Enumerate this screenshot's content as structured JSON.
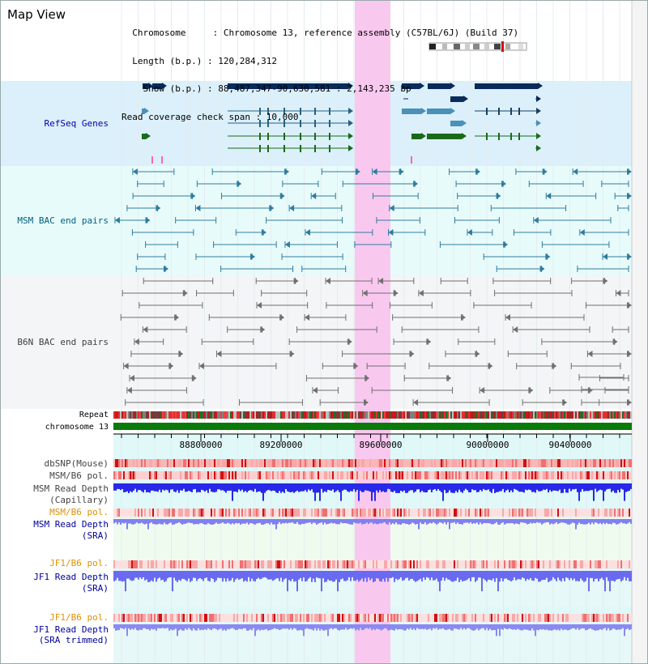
{
  "header": {
    "title": "Map View",
    "info_lines": [
      "  Chromosome     : Chromosome 13, reference assembly (C57BL/6J) (Build 37)",
      "  Length (b.p.) : 120,284,312",
      "    Show (b.p.) : 88,487,347-90,630,581 : 2,143,235 bp",
      "Read coverage check span : 10,000"
    ]
  },
  "tracks": {
    "refseq_label": "RefSeq Genes",
    "msm_bac_label": "MSM BAC end pairs",
    "b6n_bac_label": "B6N BAC end pairs",
    "repeat_label": "Repeat",
    "chromosome_label": "chromosome 13",
    "dbsnp_label": "dbSNP(Mouse)",
    "msm_b6_pol_label": "MSM/B6 pol.",
    "msm_read_depth_cap_label_1": "MSM Read Depth",
    "msm_read_depth_cap_label_2": "(Capillary)",
    "msm_b6_pol_2_label": "MSM/B6 pol.",
    "msm_read_depth_sra_label_1": "MSM Read Depth",
    "msm_read_depth_sra_label_2": "(SRA)",
    "jf1_b6_pol_label": "JF1/B6 pol.",
    "jf1_read_depth_sra_label_1": "JF1 Read Depth",
    "jf1_read_depth_sra_label_2": "(SRA)",
    "jf1_b6_pol_2_label": "JF1/B6 pol.",
    "jf1_read_depth_trim_label_1": "JF1 Read Depth",
    "jf1_read_depth_trim_label_2": "(SRA trimmed)"
  },
  "ruler": {
    "ticks": [
      "88800000",
      "89200000",
      "89600000",
      "90000000",
      "90400000"
    ]
  },
  "colors": {
    "refseq_label": "#0000aa",
    "msm_label": "#006080",
    "b6n_label": "#404040",
    "orange_label": "#e09000",
    "blue_label": "#000099",
    "highlight": "#f9c8ef"
  }
}
